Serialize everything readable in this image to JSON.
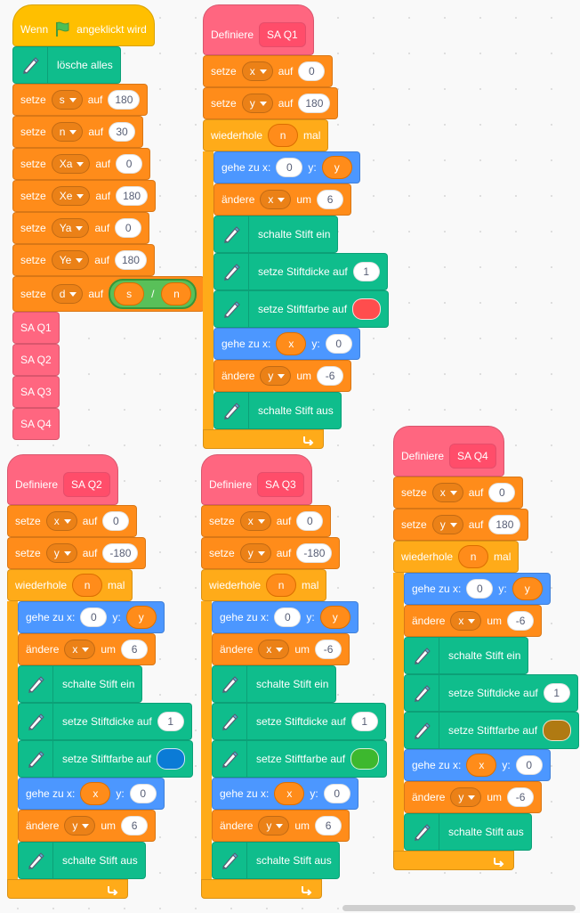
{
  "scripts": [
    {
      "blocks": [
        {
          "shape": "hat",
          "color": "#ffbf00",
          "parts": [
            "Wenn",
            "angeklickt wird"
          ]
        },
        {
          "color": "#0fbd8c",
          "parts": [
            "lösche alles"
          ]
        },
        {
          "color": "#ff8c1a",
          "parts": [
            "setze",
            {
              "field": "s"
            },
            "auf",
            {
              "input": "180"
            }
          ]
        },
        {
          "color": "#ff8c1a",
          "parts": [
            "setze",
            {
              "field": "n"
            },
            "auf",
            {
              "input": "30"
            }
          ]
        },
        {
          "color": "#ff8c1a",
          "parts": [
            "setze",
            {
              "field": "Xa"
            },
            "auf",
            {
              "input": "0"
            }
          ]
        },
        {
          "color": "#ff8c1a",
          "parts": [
            "setze",
            {
              "field": "Xe"
            },
            "auf",
            {
              "input": "180"
            }
          ]
        },
        {
          "color": "#ff8c1a",
          "parts": [
            "setze",
            {
              "field": "Ya"
            },
            "auf",
            {
              "input": "0"
            }
          ]
        },
        {
          "color": "#ff8c1a",
          "parts": [
            "setze",
            {
              "field": "Ye"
            },
            "auf",
            {
              "input": "180"
            }
          ]
        },
        {
          "color": "#ff8c1a",
          "parts": [
            "setze",
            {
              "field": "d"
            },
            "auf",
            {
              "color": "#59c059",
              "op": [
                {
                  "reporter": "s"
                },
                "/",
                {
                  "reporter": "n"
                }
              ]
            }
          ]
        },
        {
          "color": "#ff6680",
          "parts": [
            "SA Q1"
          ]
        },
        {
          "color": "#ff6680",
          "parts": [
            "SA Q2"
          ]
        },
        {
          "color": "#ff6680",
          "parts": [
            "SA Q3"
          ]
        },
        {
          "color": "#ff6680",
          "parts": [
            "SA Q4"
          ]
        }
      ]
    },
    {
      "blocks": [
        {
          "shape": "define",
          "color": "#ff6680",
          "parts": [
            "Definiere",
            {
              "custom": "SA Q1"
            }
          ]
        },
        {
          "color": "#ff8c1a",
          "parts": [
            "setze",
            {
              "field": "x"
            },
            "auf",
            {
              "input": "0"
            }
          ]
        },
        {
          "color": "#ff8c1a",
          "parts": [
            "setze",
            {
              "field": "y"
            },
            "auf",
            {
              "input": "180"
            }
          ]
        },
        {
          "color": "#ffab19",
          "parts": [
            "wiederhole",
            {
              "reporter": "n"
            },
            "mal"
          ],
          "body": [
            {
              "color": "#4c97ff",
              "parts": [
                "gehe zu x:",
                {
                  "input": "0"
                },
                "y:",
                {
                  "reporter": "y"
                }
              ]
            },
            {
              "color": "#ff8c1a",
              "parts": [
                "ändere",
                {
                  "field": "x"
                },
                "um",
                {
                  "input": "6"
                }
              ]
            },
            {
              "color": "#0fbd8c",
              "parts": [
                "schalte Stift ein"
              ]
            },
            {
              "color": "#0fbd8c",
              "parts": [
                "setze Stiftdicke auf",
                {
                  "input": "1"
                }
              ]
            },
            {
              "color": "#0fbd8c",
              "parts": [
                "setze Stiftfarbe auf",
                {
                  "swatch": "#ff4d4d"
                }
              ]
            },
            {
              "color": "#4c97ff",
              "parts": [
                "gehe zu x:",
                {
                  "reporter": "x"
                },
                "y:",
                {
                  "input": "0"
                }
              ]
            },
            {
              "color": "#ff8c1a",
              "parts": [
                "ändere",
                {
                  "field": "y"
                },
                "um",
                {
                  "input": "-6"
                }
              ]
            },
            {
              "color": "#0fbd8c",
              "parts": [
                "schalte Stift aus"
              ]
            }
          ]
        }
      ]
    },
    {
      "blocks": [
        {
          "shape": "define",
          "color": "#ff6680",
          "parts": [
            "Definiere",
            {
              "custom": "SA Q2"
            }
          ]
        },
        {
          "color": "#ff8c1a",
          "parts": [
            "setze",
            {
              "field": "x"
            },
            "auf",
            {
              "input": "0"
            }
          ]
        },
        {
          "color": "#ff8c1a",
          "parts": [
            "setze",
            {
              "field": "y"
            },
            "auf",
            {
              "input": "-180"
            }
          ]
        },
        {
          "color": "#ffab19",
          "parts": [
            "wiederhole",
            {
              "reporter": "n"
            },
            "mal"
          ],
          "body": [
            {
              "color": "#4c97ff",
              "parts": [
                "gehe zu x:",
                {
                  "input": "0"
                },
                "y:",
                {
                  "reporter": "y"
                }
              ]
            },
            {
              "color": "#ff8c1a",
              "parts": [
                "ändere",
                {
                  "field": "x"
                },
                "um",
                {
                  "input": "6"
                }
              ]
            },
            {
              "color": "#0fbd8c",
              "parts": [
                "schalte Stift ein"
              ]
            },
            {
              "color": "#0fbd8c",
              "parts": [
                "setze Stiftdicke auf",
                {
                  "input": "1"
                }
              ]
            },
            {
              "color": "#0fbd8c",
              "parts": [
                "setze Stiftfarbe auf",
                {
                  "swatch": "#0b7bd6"
                }
              ]
            },
            {
              "color": "#4c97ff",
              "parts": [
                "gehe zu x:",
                {
                  "reporter": "x"
                },
                "y:",
                {
                  "input": "0"
                }
              ]
            },
            {
              "color": "#ff8c1a",
              "parts": [
                "ändere",
                {
                  "field": "y"
                },
                "um",
                {
                  "input": "6"
                }
              ]
            },
            {
              "color": "#0fbd8c",
              "parts": [
                "schalte Stift aus"
              ]
            }
          ]
        }
      ]
    },
    {
      "blocks": [
        {
          "shape": "define",
          "color": "#ff6680",
          "parts": [
            "Definiere",
            {
              "custom": "SA Q3"
            }
          ]
        },
        {
          "color": "#ff8c1a",
          "parts": [
            "setze",
            {
              "field": "x"
            },
            "auf",
            {
              "input": "0"
            }
          ]
        },
        {
          "color": "#ff8c1a",
          "parts": [
            "setze",
            {
              "field": "y"
            },
            "auf",
            {
              "input": "-180"
            }
          ]
        },
        {
          "color": "#ffab19",
          "parts": [
            "wiederhole",
            {
              "reporter": "n"
            },
            "mal"
          ],
          "body": [
            {
              "color": "#4c97ff",
              "parts": [
                "gehe zu x:",
                {
                  "input": "0"
                },
                "y:",
                {
                  "reporter": "y"
                }
              ]
            },
            {
              "color": "#ff8c1a",
              "parts": [
                "ändere",
                {
                  "field": "x"
                },
                "um",
                {
                  "input": "-6"
                }
              ]
            },
            {
              "color": "#0fbd8c",
              "parts": [
                "schalte Stift ein"
              ]
            },
            {
              "color": "#0fbd8c",
              "parts": [
                "setze Stiftdicke auf",
                {
                  "input": "1"
                }
              ]
            },
            {
              "color": "#0fbd8c",
              "parts": [
                "setze Stiftfarbe auf",
                {
                  "swatch": "#3db82e"
                }
              ]
            },
            {
              "color": "#4c97ff",
              "parts": [
                "gehe zu x:",
                {
                  "reporter": "x"
                },
                "y:",
                {
                  "input": "0"
                }
              ]
            },
            {
              "color": "#ff8c1a",
              "parts": [
                "ändere",
                {
                  "field": "y"
                },
                "um",
                {
                  "input": "6"
                }
              ]
            },
            {
              "color": "#0fbd8c",
              "parts": [
                "schalte Stift aus"
              ]
            }
          ]
        }
      ]
    },
    {
      "blocks": [
        {
          "shape": "define",
          "color": "#ff6680",
          "parts": [
            "Definiere",
            {
              "custom": "SA Q4"
            }
          ]
        },
        {
          "color": "#ff8c1a",
          "parts": [
            "setze",
            {
              "field": "x"
            },
            "auf",
            {
              "input": "0"
            }
          ]
        },
        {
          "color": "#ff8c1a",
          "parts": [
            "setze",
            {
              "field": "y"
            },
            "auf",
            {
              "input": "180"
            }
          ]
        },
        {
          "color": "#ffab19",
          "parts": [
            "wiederhole",
            {
              "reporter": "n"
            },
            "mal"
          ],
          "body": [
            {
              "color": "#4c97ff",
              "parts": [
                "gehe zu x:",
                {
                  "input": "0"
                },
                "y:",
                {
                  "reporter": "y"
                }
              ]
            },
            {
              "color": "#ff8c1a",
              "parts": [
                "ändere",
                {
                  "field": "x"
                },
                "um",
                {
                  "input": "-6"
                }
              ]
            },
            {
              "color": "#0fbd8c",
              "parts": [
                "schalte Stift ein"
              ]
            },
            {
              "color": "#0fbd8c",
              "parts": [
                "setze Stiftdicke auf",
                {
                  "input": "1"
                }
              ]
            },
            {
              "color": "#0fbd8c",
              "parts": [
                "setze Stiftfarbe auf",
                {
                  "swatch": "#b07a12"
                }
              ]
            },
            {
              "color": "#4c97ff",
              "parts": [
                "gehe zu x:",
                {
                  "reporter": "x"
                },
                "y:",
                {
                  "input": "0"
                }
              ]
            },
            {
              "color": "#ff8c1a",
              "parts": [
                "ändere",
                {
                  "field": "y"
                },
                "um",
                {
                  "input": "-6"
                }
              ]
            },
            {
              "color": "#0fbd8c",
              "parts": [
                "schalte Stift aus"
              ]
            }
          ]
        }
      ]
    }
  ]
}
